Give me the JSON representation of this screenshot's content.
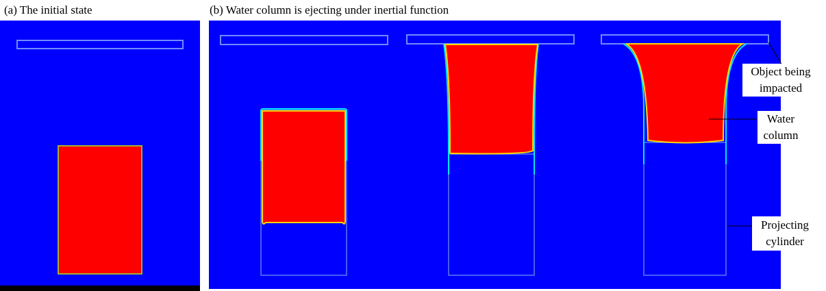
{
  "panels": [
    {
      "caption": "(a) The initial state"
    },
    {
      "caption": "(b) Water column is ejecting under inertial function"
    }
  ],
  "annotations": [
    {
      "lines": [
        "Object being",
        "impacted"
      ]
    },
    {
      "lines": [
        "Water",
        "column"
      ]
    },
    {
      "lines": [
        "Projecting",
        "cylinder"
      ]
    }
  ]
}
